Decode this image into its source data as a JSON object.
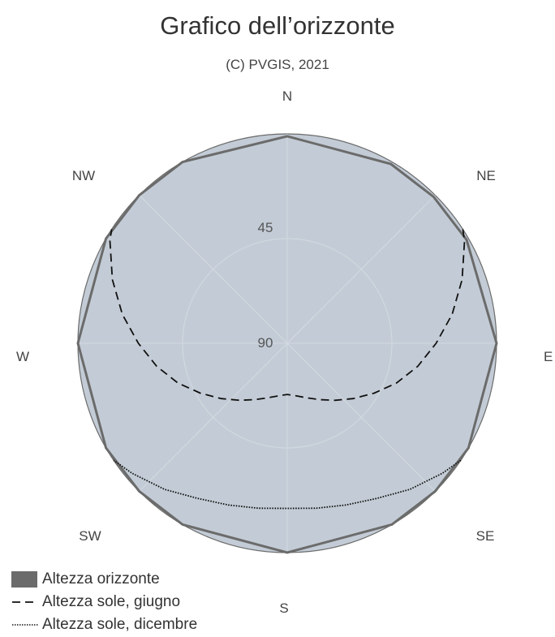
{
  "title": "Grafico dell’orizzonte",
  "subtitle": "(C) PVGIS, 2021",
  "compass": {
    "n": "N",
    "ne": "NE",
    "e": "E",
    "se": "SE",
    "s": "S",
    "sw": "SW",
    "w": "W",
    "nw": "NW"
  },
  "ring_labels": {
    "r45": "45",
    "r90": "90"
  },
  "legend": {
    "horizon": "Altezza orizzonte",
    "june": "Altezza sole, giugno",
    "december": "Altezza sole, dicembre"
  },
  "colors": {
    "disc_fill": "#c3ccd6",
    "horizon": "#6b6b6b",
    "grid": "#d4d9e0",
    "line": "#111111"
  },
  "chart_data": {
    "type": "polar-line",
    "radial_axis": "elevation (deg)",
    "radial_ticks": [
      45,
      90
    ],
    "angular_axis": "azimuth (deg, 0=N clockwise)",
    "series": [
      {
        "name": "Altezza orizzonte",
        "style": "filled",
        "azimuth": [
          0,
          30,
          45,
          60,
          90,
          120,
          135,
          150,
          180,
          210,
          225,
          240,
          270,
          300,
          315,
          330,
          360
        ],
        "elevation": [
          1,
          1,
          1,
          1,
          0,
          0,
          0,
          0,
          0,
          0,
          0,
          0,
          0,
          0,
          0,
          0,
          1
        ]
      },
      {
        "name": "Altezza sole, giugno",
        "style": "dashed",
        "azimuth": [
          57,
          60,
          70,
          80,
          90,
          100,
          110,
          120,
          130,
          140,
          150,
          160,
          170,
          180,
          190,
          200,
          210,
          220,
          230,
          240,
          250,
          260,
          270,
          280,
          290,
          300,
          303
        ],
        "elevation": [
          0,
          2,
          10,
          18,
          26,
          33,
          40,
          47,
          53,
          58,
          62,
          65,
          67,
          68,
          67,
          65,
          62,
          58,
          53,
          47,
          40,
          33,
          26,
          18,
          10,
          2,
          0
        ]
      },
      {
        "name": "Altezza sole, dicembre",
        "style": "dotted",
        "azimuth": [
          124,
          130,
          140,
          150,
          160,
          170,
          180,
          190,
          200,
          210,
          220,
          230,
          236
        ],
        "elevation": [
          0,
          3,
          8,
          13,
          16,
          18,
          19,
          18,
          16,
          13,
          8,
          3,
          0
        ]
      }
    ]
  }
}
